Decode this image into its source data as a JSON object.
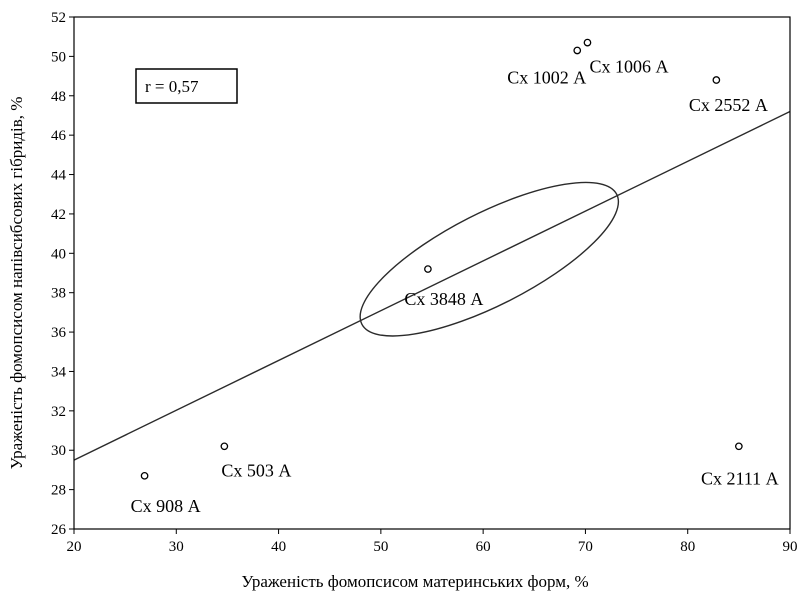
{
  "chart_data": {
    "type": "scatter",
    "title": "",
    "xlabel": "Ураженість фомопсисом материнських форм, %",
    "ylabel": "Ураженість фомопсисом напівсибсових гібридів, %",
    "xlim": [
      20,
      90
    ],
    "ylim": [
      26,
      52
    ],
    "xticks": [
      20,
      30,
      40,
      50,
      60,
      70,
      80,
      90
    ],
    "yticks": [
      26,
      28,
      30,
      32,
      34,
      36,
      38,
      40,
      42,
      44,
      46,
      48,
      50,
      52
    ],
    "grid": false,
    "annotation": "r = 0,57",
    "points": [
      {
        "label": "Сх 908 А",
        "x": 26.9,
        "y": 28.7
      },
      {
        "label": "Сх 503 А",
        "x": 34.7,
        "y": 30.2
      },
      {
        "label": "Сх 3848 А",
        "x": 54.6,
        "y": 39.2
      },
      {
        "label": "Сх 1002 А",
        "x": 69.2,
        "y": 50.3
      },
      {
        "label": "Сх 1006 А",
        "x": 70.2,
        "y": 50.7
      },
      {
        "label": "Сх 2552 А",
        "x": 82.8,
        "y": 48.8
      },
      {
        "label": "Сх 2111 А",
        "x": 85.0,
        "y": 30.2
      }
    ],
    "regression": {
      "x": [
        20,
        90
      ],
      "y": [
        29.5,
        47.2
      ]
    },
    "ellipse": {
      "center": [
        60.6,
        39.7
      ],
      "semi_axes": [
        14.4,
        3.9
      ],
      "angle_deg": 27
    }
  }
}
